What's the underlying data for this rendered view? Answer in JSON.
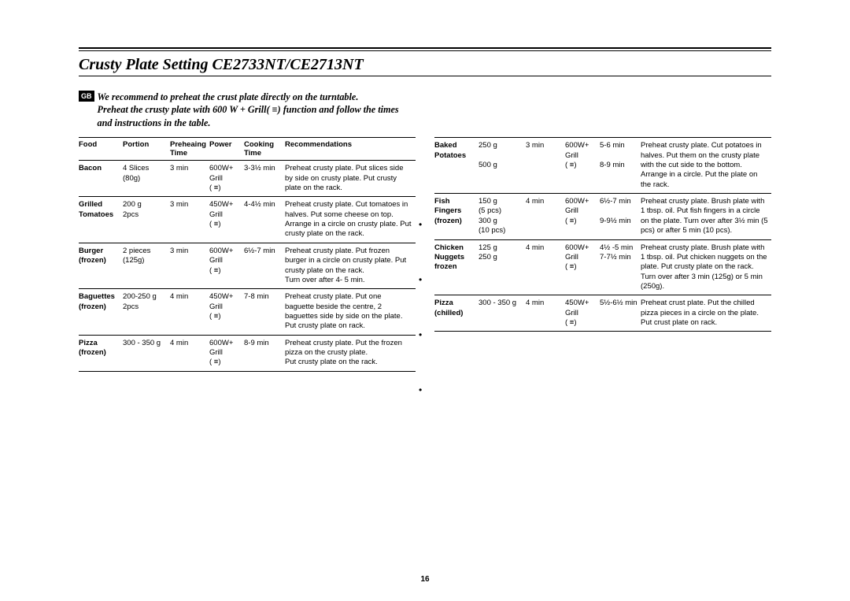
{
  "title": "Crusty Plate Setting CE2733NT/CE2713NT",
  "gb": "GB",
  "intro1": "We recommend to preheat the crust plate directly on the turntable.",
  "intro2": "Preheat the crusty plate with 600 W + Grill( ≡) function and follow the times and instructions in the table.",
  "pagenum": "16",
  "hdr": {
    "food": "Food",
    "portion": "Portion",
    "preh": "Preheaing Time",
    "power": "Power",
    "cook": "Cooking Time",
    "rec": "Recommendations"
  },
  "left": [
    {
      "food": "Bacon",
      "food2": "",
      "portion": "4 Slices\n(80g)",
      "preh": "3 min",
      "power": "600W+\nGrill\n( ≡)",
      "cook": "3-3½ min",
      "rec": "Preheat crusty plate. Put slices side by side on crusty plate. Put crusty plate on the rack."
    },
    {
      "food": "Grilled",
      "food2": "Tomatoes",
      "portion": "200 g\n2pcs",
      "preh": "3 min",
      "power": "450W+\nGrill\n( ≡)",
      "cook": "4-4½ min",
      "rec": "Preheat crusty plate. Cut tomatoes in halves. Put some cheese on top. Arrange in a circle on crusty plate. Put crusty plate on the rack."
    },
    {
      "food": "Burger",
      "food2": "(frozen)",
      "portion": "2 pieces\n(125g)",
      "preh": "3 min",
      "power": "600W+\nGrill\n( ≡)",
      "cook": "6½-7 min",
      "rec": "Preheat crusty plate. Put frozen burger in a circle on crusty plate. Put crusty plate on the rack.\nTurn over after 4- 5 min."
    },
    {
      "food": "Baguettes",
      "food2": "(frozen)",
      "portion": "200-250 g\n2pcs",
      "preh": "4 min",
      "power": "450W+\nGrill\n( ≡)",
      "cook": "7-8 min",
      "rec": "Preheat crusty plate. Put one baguette beside the centre, 2 baguettes side by side on the plate. Put crusty plate on rack."
    },
    {
      "food": "Pizza",
      "food2": "(frozen)",
      "portion": "300 - 350 g",
      "preh": "4 min",
      "power": "600W+\nGrill\n( ≡)",
      "cook": "8-9 min",
      "rec": "Preheat crusty plate. Put the frozen pizza on the crusty plate.\nPut crusty plate on the rack."
    }
  ],
  "right": [
    {
      "food": "Baked",
      "food2": "Potatoes",
      "portion": "250 g\n\n500 g",
      "preh": "3 min",
      "power": "600W+\nGrill\n( ≡)",
      "cook": "5-6 min\n\n8-9 min",
      "rec": "Preheat crusty plate. Cut potatoes in halves. Put them on the crusty plate with the cut side to the bottom. Arrange in a circle. Put the plate on the rack."
    },
    {
      "food": "Fish",
      "food2": "Fingers\n(frozen)",
      "portion": "150 g\n(5 pcs)\n300 g\n(10 pcs)",
      "preh": "4 min",
      "power": "600W+\nGrill\n( ≡)",
      "cook": "6½-7 min\n\n9-9½ min",
      "rec": "Preheat crusty plate. Brush plate with 1 tbsp. oil. Put fish fingers in a circle on the plate. Turn over after 3½ min (5 pcs) or after 5 min (10 pcs)."
    },
    {
      "food": "Chicken",
      "food2": "Nuggets\nfrozen",
      "portion": "125 g\n250 g",
      "preh": "4 min",
      "power": "600W+\nGrill\n( ≡)",
      "cook": "4½ -5 min\n7-7½ min",
      "rec": "Preheat crusty plate. Brush plate with 1 tbsp. oil. Put chicken nuggets on the plate. Put crusty plate on the rack. Turn over after 3 min (125g) or 5 min (250g)."
    },
    {
      "food": "Pizza",
      "food2": "(chilled)",
      "portion": "300 - 350 g",
      "preh": "4 min",
      "power": "450W+\nGrill\n( ≡)",
      "cook": "5½-6½ min",
      "rec": "Preheat crust plate. Put the chilled pizza pieces in a circle on the plate. Put crust plate on rack."
    }
  ]
}
